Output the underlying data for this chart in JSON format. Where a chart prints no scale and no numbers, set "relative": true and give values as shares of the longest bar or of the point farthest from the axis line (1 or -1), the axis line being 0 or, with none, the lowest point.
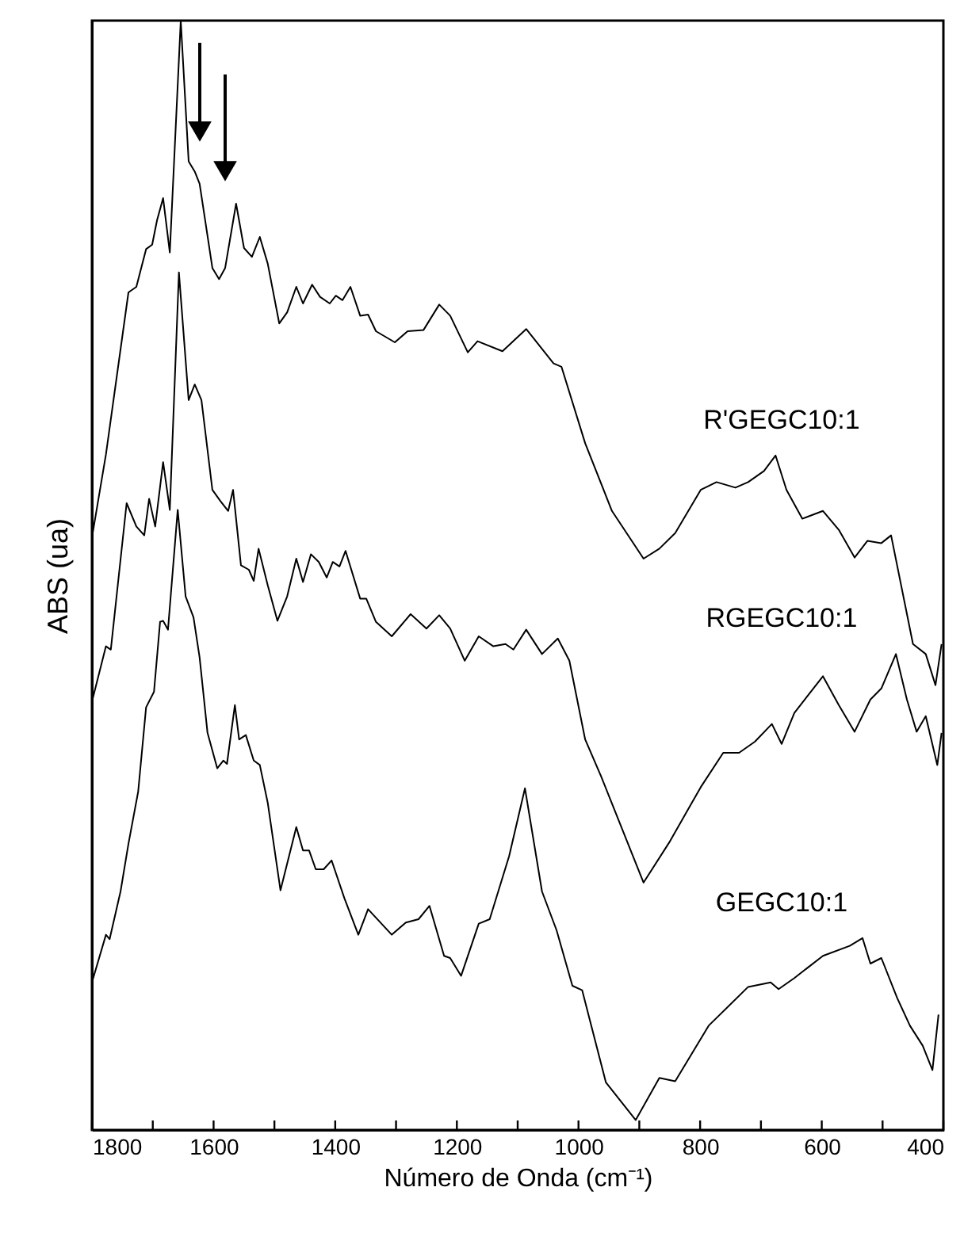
{
  "chart_data": {
    "type": "line",
    "relative": true,
    "xlabel": "Número de Onda (cm⁻¹)",
    "ylabel": "ABS (ua)",
    "xlim": [
      1800,
      400
    ],
    "xticks": [
      1800,
      {
        "value": 1700,
        "label": null
      },
      1600,
      {
        "value": 1500,
        "label": null
      },
      1400,
      {
        "value": 1300,
        "label": null
      },
      1200,
      {
        "value": 1100,
        "label": null
      },
      1000,
      {
        "value": 900,
        "label": null
      },
      800,
      {
        "value": 700,
        "label": null
      },
      600,
      {
        "value": 500,
        "label": null
      },
      400
    ],
    "grid": false,
    "legend": false,
    "marker": "none",
    "line_style": "solid",
    "series": [
      {
        "name": "R'GEGC10:1",
        "color": "#000000",
        "x": [
          1800,
          1777,
          1740,
          1727,
          1711,
          1701,
          1693,
          1683,
          1672,
          1654,
          1641,
          1631,
          1623,
          1602,
          1591,
          1581,
          1563,
          1550,
          1537,
          1524,
          1511,
          1492,
          1479,
          1464,
          1453,
          1438,
          1425,
          1409,
          1399,
          1388,
          1375,
          1359,
          1346,
          1333,
          1302,
          1281,
          1255,
          1229,
          1211,
          1182,
          1166,
          1125,
          1086,
          1041,
          1028,
          989,
          945,
          893,
          867,
          841,
          799,
          773,
          742,
          721,
          695,
          676,
          658,
          632,
          598,
          572,
          546,
          525,
          502,
          486,
          450,
          429,
          413,
          403
        ],
        "values": [
          0.534,
          0.609,
          0.755,
          0.76,
          0.794,
          0.798,
          0.82,
          0.84,
          0.791,
          1.0,
          0.873,
          0.864,
          0.853,
          0.777,
          0.767,
          0.777,
          0.835,
          0.795,
          0.787,
          0.805,
          0.781,
          0.727,
          0.737,
          0.76,
          0.745,
          0.762,
          0.751,
          0.745,
          0.752,
          0.748,
          0.76,
          0.734,
          0.735,
          0.72,
          0.71,
          0.72,
          0.721,
          0.744,
          0.734,
          0.701,
          0.711,
          0.702,
          0.722,
          0.691,
          0.688,
          0.619,
          0.558,
          0.515,
          0.524,
          0.538,
          0.577,
          0.584,
          0.579,
          0.584,
          0.594,
          0.608,
          0.577,
          0.551,
          0.558,
          0.541,
          0.516,
          0.531,
          0.529,
          0.536,
          0.438,
          0.429,
          0.401,
          0.438
        ]
      },
      {
        "name": "RGEGC10:1",
        "color": "#000000",
        "x": [
          1800,
          1777,
          1769,
          1743,
          1727,
          1714,
          1706,
          1696,
          1683,
          1672,
          1657,
          1641,
          1631,
          1620,
          1602,
          1589,
          1576,
          1568,
          1555,
          1542,
          1534,
          1526,
          1511,
          1495,
          1479,
          1464,
          1453,
          1440,
          1427,
          1414,
          1404,
          1393,
          1383,
          1359,
          1349,
          1333,
          1307,
          1276,
          1250,
          1229,
          1211,
          1187,
          1164,
          1140,
          1120,
          1107,
          1086,
          1060,
          1034,
          1015,
          989,
          963,
          893,
          851,
          799,
          762,
          736,
          710,
          682,
          666,
          645,
          598,
          572,
          546,
          520,
          502,
          478,
          460,
          444,
          429,
          410,
          403
        ],
        "values": [
          0.386,
          0.436,
          0.433,
          0.565,
          0.544,
          0.536,
          0.569,
          0.544,
          0.602,
          0.559,
          0.773,
          0.658,
          0.672,
          0.658,
          0.577,
          0.567,
          0.558,
          0.577,
          0.509,
          0.505,
          0.495,
          0.524,
          0.491,
          0.459,
          0.481,
          0.515,
          0.494,
          0.519,
          0.512,
          0.498,
          0.512,
          0.508,
          0.522,
          0.479,
          0.479,
          0.458,
          0.445,
          0.465,
          0.452,
          0.464,
          0.452,
          0.423,
          0.445,
          0.436,
          0.438,
          0.433,
          0.451,
          0.429,
          0.443,
          0.423,
          0.352,
          0.319,
          0.223,
          0.259,
          0.309,
          0.34,
          0.34,
          0.35,
          0.366,
          0.348,
          0.376,
          0.409,
          0.383,
          0.359,
          0.388,
          0.398,
          0.429,
          0.388,
          0.359,
          0.373,
          0.329,
          0.358
        ]
      },
      {
        "name": "GEGC10:1",
        "color": "#000000",
        "x": [
          1800,
          1777,
          1771,
          1753,
          1740,
          1724,
          1711,
          1698,
          1688,
          1683,
          1675,
          1659,
          1646,
          1633,
          1623,
          1610,
          1594,
          1584,
          1578,
          1565,
          1558,
          1547,
          1534,
          1524,
          1511,
          1490,
          1464,
          1453,
          1443,
          1432,
          1419,
          1406,
          1385,
          1362,
          1346,
          1307,
          1284,
          1263,
          1245,
          1221,
          1211,
          1193,
          1164,
          1146,
          1114,
          1088,
          1060,
          1036,
          1010,
          994,
          955,
          906,
          867,
          841,
          786,
          721,
          684,
          671,
          645,
          598,
          554,
          533,
          520,
          502,
          476,
          455,
          434,
          418,
          408
        ],
        "values": [
          0.133,
          0.176,
          0.172,
          0.215,
          0.258,
          0.305,
          0.381,
          0.395,
          0.458,
          0.459,
          0.451,
          0.559,
          0.481,
          0.462,
          0.426,
          0.358,
          0.326,
          0.333,
          0.33,
          0.383,
          0.352,
          0.356,
          0.333,
          0.329,
          0.295,
          0.216,
          0.273,
          0.252,
          0.252,
          0.235,
          0.235,
          0.243,
          0.209,
          0.176,
          0.199,
          0.176,
          0.187,
          0.19,
          0.202,
          0.157,
          0.155,
          0.139,
          0.186,
          0.19,
          0.247,
          0.308,
          0.215,
          0.18,
          0.13,
          0.126,
          0.043,
          0.009,
          0.047,
          0.044,
          0.094,
          0.129,
          0.133,
          0.127,
          0.137,
          0.157,
          0.166,
          0.173,
          0.15,
          0.155,
          0.119,
          0.094,
          0.076,
          0.054,
          0.104
        ]
      }
    ]
  }
}
